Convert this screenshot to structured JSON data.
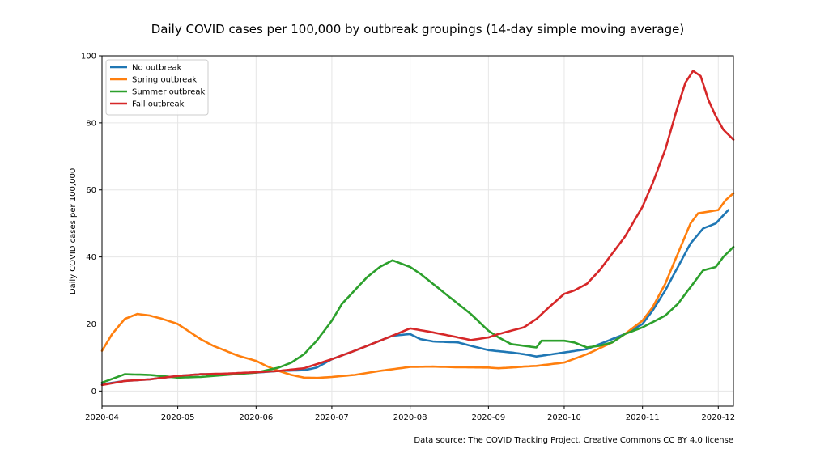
{
  "chart_data": {
    "type": "line",
    "title": "Daily COVID cases per 100,000 by outbreak groupings (14-day simple moving average)",
    "xlabel": "",
    "ylabel": "Daily COVID cases per 100,000",
    "source_note": "Data source: The COVID Tracking Project, Creative Commons CC BY 4.0 license",
    "xlim": [
      "2020-04-01",
      "2020-12-07"
    ],
    "ylim": [
      -4.5,
      100
    ],
    "x_ticks": [
      "2020-04-01",
      "2020-05-01",
      "2020-06-01",
      "2020-07-01",
      "2020-08-01",
      "2020-09-01",
      "2020-10-01",
      "2020-11-01",
      "2020-12-01"
    ],
    "x_tick_labels": [
      "2020-04",
      "2020-05",
      "2020-06",
      "2020-07",
      "2020-08",
      "2020-09",
      "2020-10",
      "2020-11",
      "2020-12"
    ],
    "y_ticks": [
      0,
      20,
      40,
      60,
      80,
      100
    ],
    "grid": true,
    "legend_position": "top-left",
    "series": [
      {
        "name": "No outbreak",
        "color": "#1f77b4",
        "points": [
          [
            "2020-04-01",
            2
          ],
          [
            "2020-04-10",
            3
          ],
          [
            "2020-04-20",
            3.5
          ],
          [
            "2020-05-01",
            4.5
          ],
          [
            "2020-05-10",
            5
          ],
          [
            "2020-05-20",
            5
          ],
          [
            "2020-06-01",
            5.5
          ],
          [
            "2020-06-10",
            6
          ],
          [
            "2020-06-20",
            6.2
          ],
          [
            "2020-06-25",
            7
          ],
          [
            "2020-07-01",
            9.5
          ],
          [
            "2020-07-10",
            12
          ],
          [
            "2020-07-20",
            15
          ],
          [
            "2020-07-25",
            16.5
          ],
          [
            "2020-08-01",
            17
          ],
          [
            "2020-08-05",
            15.5
          ],
          [
            "2020-08-10",
            14.8
          ],
          [
            "2020-08-20",
            14.5
          ],
          [
            "2020-08-25",
            13.5
          ],
          [
            "2020-09-01",
            12.2
          ],
          [
            "2020-09-10",
            11.5
          ],
          [
            "2020-09-15",
            11
          ],
          [
            "2020-09-20",
            10.3
          ],
          [
            "2020-10-01",
            11.5
          ],
          [
            "2020-10-10",
            12.5
          ],
          [
            "2020-10-15",
            14
          ],
          [
            "2020-10-25",
            17
          ],
          [
            "2020-11-01",
            20
          ],
          [
            "2020-11-05",
            24
          ],
          [
            "2020-11-10",
            30
          ],
          [
            "2020-11-15",
            37
          ],
          [
            "2020-11-20",
            44
          ],
          [
            "2020-11-25",
            48.5
          ],
          [
            "2020-11-30",
            50
          ],
          [
            "2020-12-05",
            54
          ]
        ]
      },
      {
        "name": "Spring outbreak",
        "color": "#ff7f0e",
        "points": [
          [
            "2020-04-01",
            12
          ],
          [
            "2020-04-05",
            17
          ],
          [
            "2020-04-10",
            21.5
          ],
          [
            "2020-04-15",
            23
          ],
          [
            "2020-04-20",
            22.5
          ],
          [
            "2020-04-25",
            21.5
          ],
          [
            "2020-05-01",
            20
          ],
          [
            "2020-05-05",
            18
          ],
          [
            "2020-05-10",
            15.5
          ],
          [
            "2020-05-15",
            13.5
          ],
          [
            "2020-05-20",
            12
          ],
          [
            "2020-05-25",
            10.5
          ],
          [
            "2020-06-01",
            9
          ],
          [
            "2020-06-05",
            7.5
          ],
          [
            "2020-06-10",
            6
          ],
          [
            "2020-06-15",
            4.8
          ],
          [
            "2020-06-20",
            4
          ],
          [
            "2020-06-25",
            3.9
          ],
          [
            "2020-07-01",
            4.2
          ],
          [
            "2020-07-10",
            4.8
          ],
          [
            "2020-07-20",
            6
          ],
          [
            "2020-08-01",
            7.2
          ],
          [
            "2020-08-10",
            7.3
          ],
          [
            "2020-08-20",
            7.1
          ],
          [
            "2020-09-01",
            7
          ],
          [
            "2020-09-05",
            6.8
          ],
          [
            "2020-09-10",
            7
          ],
          [
            "2020-09-15",
            7.3
          ],
          [
            "2020-09-20",
            7.5
          ],
          [
            "2020-10-01",
            8.5
          ],
          [
            "2020-10-10",
            11
          ],
          [
            "2020-10-20",
            14.5
          ],
          [
            "2020-10-25",
            17
          ],
          [
            "2020-11-01",
            21
          ],
          [
            "2020-11-05",
            25
          ],
          [
            "2020-11-10",
            32
          ],
          [
            "2020-11-15",
            41
          ],
          [
            "2020-11-20",
            50
          ],
          [
            "2020-11-23",
            53
          ],
          [
            "2020-11-27",
            53.5
          ],
          [
            "2020-12-01",
            54
          ],
          [
            "2020-12-04",
            57
          ],
          [
            "2020-12-07",
            59
          ]
        ]
      },
      {
        "name": "Summer outbreak",
        "color": "#2ca02c",
        "points": [
          [
            "2020-04-01",
            2.5
          ],
          [
            "2020-04-10",
            5
          ],
          [
            "2020-04-20",
            4.8
          ],
          [
            "2020-05-01",
            4
          ],
          [
            "2020-05-10",
            4.2
          ],
          [
            "2020-05-20",
            4.8
          ],
          [
            "2020-06-01",
            5.5
          ],
          [
            "2020-06-10",
            7
          ],
          [
            "2020-06-15",
            8.5
          ],
          [
            "2020-06-20",
            11
          ],
          [
            "2020-06-25",
            15
          ],
          [
            "2020-07-01",
            21
          ],
          [
            "2020-07-05",
            26
          ],
          [
            "2020-07-10",
            30
          ],
          [
            "2020-07-15",
            34
          ],
          [
            "2020-07-20",
            37
          ],
          [
            "2020-07-25",
            39
          ],
          [
            "2020-08-01",
            37
          ],
          [
            "2020-08-05",
            35
          ],
          [
            "2020-08-10",
            32
          ],
          [
            "2020-08-15",
            29
          ],
          [
            "2020-08-20",
            26
          ],
          [
            "2020-08-25",
            23
          ],
          [
            "2020-09-01",
            18
          ],
          [
            "2020-09-05",
            16
          ],
          [
            "2020-09-10",
            14
          ],
          [
            "2020-09-15",
            13.5
          ],
          [
            "2020-09-20",
            13
          ],
          [
            "2020-09-22",
            15
          ],
          [
            "2020-10-01",
            15
          ],
          [
            "2020-10-05",
            14.5
          ],
          [
            "2020-10-10",
            13
          ],
          [
            "2020-10-15",
            13.5
          ],
          [
            "2020-10-20",
            14.5
          ],
          [
            "2020-10-25",
            17
          ],
          [
            "2020-11-01",
            19
          ],
          [
            "2020-11-10",
            22.5
          ],
          [
            "2020-11-15",
            26
          ],
          [
            "2020-11-20",
            31
          ],
          [
            "2020-11-25",
            36
          ],
          [
            "2020-11-30",
            37
          ],
          [
            "2020-12-03",
            40
          ],
          [
            "2020-12-07",
            43
          ]
        ]
      },
      {
        "name": "Fall outbreak",
        "color": "#d62728",
        "points": [
          [
            "2020-04-01",
            1.8
          ],
          [
            "2020-04-10",
            3
          ],
          [
            "2020-04-20",
            3.5
          ],
          [
            "2020-05-01",
            4.5
          ],
          [
            "2020-05-10",
            5
          ],
          [
            "2020-05-20",
            5.2
          ],
          [
            "2020-06-01",
            5.6
          ],
          [
            "2020-06-10",
            6
          ],
          [
            "2020-06-20",
            6.8
          ],
          [
            "2020-07-01",
            9.5
          ],
          [
            "2020-07-10",
            12
          ],
          [
            "2020-07-20",
            15
          ],
          [
            "2020-07-25",
            16.5
          ],
          [
            "2020-08-01",
            18.7
          ],
          [
            "2020-08-10",
            17.5
          ],
          [
            "2020-08-20",
            16
          ],
          [
            "2020-08-25",
            15.2
          ],
          [
            "2020-09-01",
            16
          ],
          [
            "2020-09-05",
            17
          ],
          [
            "2020-09-10",
            18
          ],
          [
            "2020-09-15",
            19
          ],
          [
            "2020-09-20",
            21.5
          ],
          [
            "2020-09-25",
            25
          ],
          [
            "2020-10-01",
            29
          ],
          [
            "2020-10-05",
            30
          ],
          [
            "2020-10-10",
            32
          ],
          [
            "2020-10-15",
            36
          ],
          [
            "2020-10-20",
            41
          ],
          [
            "2020-10-25",
            46
          ],
          [
            "2020-11-01",
            55
          ],
          [
            "2020-11-05",
            62
          ],
          [
            "2020-11-10",
            72
          ],
          [
            "2020-11-15",
            85
          ],
          [
            "2020-11-18",
            92
          ],
          [
            "2020-11-21",
            95.5
          ],
          [
            "2020-11-24",
            94
          ],
          [
            "2020-11-27",
            87
          ],
          [
            "2020-11-30",
            82
          ],
          [
            "2020-12-03",
            78
          ],
          [
            "2020-12-07",
            75
          ]
        ]
      }
    ]
  }
}
